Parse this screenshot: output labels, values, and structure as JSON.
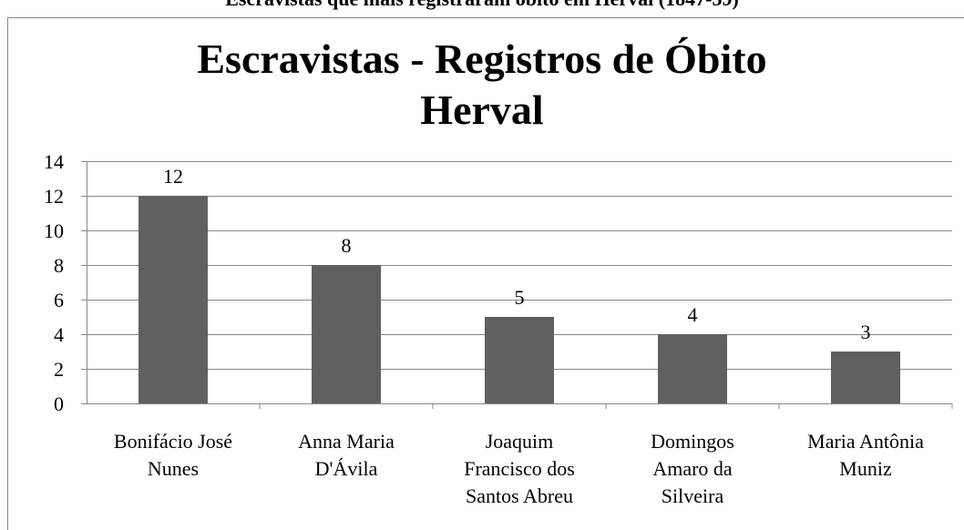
{
  "caption": "Escravistas que mais registraram óbito em Herval (1847-59)",
  "chart_data": {
    "type": "bar",
    "title": [
      "Escravistas - Registros de Óbito",
      "Herval"
    ],
    "categories": [
      [
        "Bonifácio José",
        "Nunes"
      ],
      [
        "Anna Maria",
        "D'Ávila"
      ],
      [
        "Joaquim",
        "Francisco dos",
        "Santos Abreu"
      ],
      [
        "Domingos",
        "Amaro da",
        "Silveira"
      ],
      [
        "Maria Antônia",
        "Muniz"
      ]
    ],
    "values": [
      12,
      8,
      5,
      4,
      3
    ],
    "color": "#606060",
    "ylim": [
      0,
      14
    ],
    "yticks": [
      0,
      2,
      4,
      6,
      8,
      10,
      12,
      14
    ],
    "grid": true
  }
}
